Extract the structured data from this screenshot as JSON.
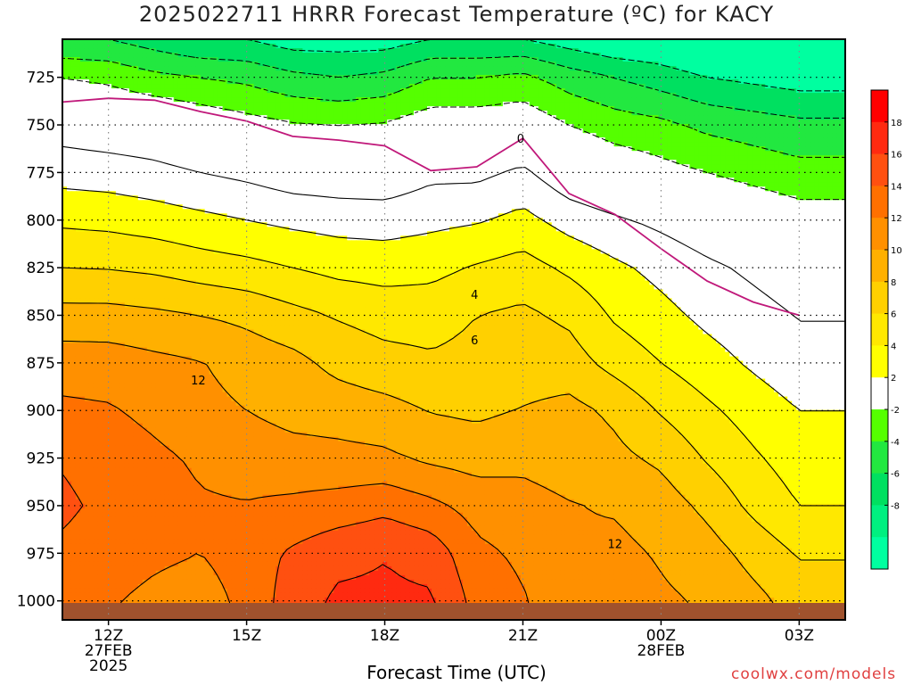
{
  "chart_data": {
    "type": "heatmap",
    "title": "2025022711 HRRR Forecast Temperature (ºC) for KACY",
    "xlabel": "Forecast Time (UTC)",
    "ylabel": "",
    "credit": "coolwx.com/models",
    "x_hours": [
      11,
      12,
      13,
      14,
      15,
      16,
      17,
      18,
      19,
      20,
      21,
      22,
      23,
      24,
      25,
      26,
      27
    ],
    "xlim": [
      11,
      28
    ],
    "ylim": [
      1010,
      705
    ],
    "y_ticks": [
      725,
      750,
      775,
      800,
      825,
      850,
      875,
      900,
      925,
      950,
      975,
      1000
    ],
    "x_ticks": [
      {
        "hour": 12,
        "lines": [
          "12Z",
          "27FEB",
          "2025"
        ]
      },
      {
        "hour": 15,
        "lines": [
          "15Z"
        ]
      },
      {
        "hour": 18,
        "lines": [
          "18Z"
        ]
      },
      {
        "hour": 21,
        "lines": [
          "21Z"
        ]
      },
      {
        "hour": 24,
        "lines": [
          "00Z",
          "28FEB"
        ]
      },
      {
        "hour": 27,
        "lines": [
          "03Z"
        ]
      }
    ],
    "grid": true,
    "levels_c": [
      -10,
      -8,
      -6,
      -4,
      -2,
      2,
      4,
      6,
      8,
      10,
      12,
      14,
      16,
      18,
      20
    ],
    "colorbar_labels": [
      18,
      16,
      14,
      12,
      10,
      8,
      6,
      4,
      2,
      -2,
      -4,
      -6,
      -8
    ],
    "colors": {
      "-10": "#00ffa0",
      "-8": "#00f080",
      "-6": "#00e060",
      "-4": "#22e840",
      "-2": "#55ff00",
      "2": "#ffffff",
      "4": "#ffff00",
      "6": "#ffe800",
      "8": "#ffd000",
      "10": "#ffb000",
      "12": "#ff9000",
      "14": "#ff7000",
      "16": "#ff5010",
      "18": "#ff2a10",
      "20": "#ff0000"
    },
    "ground_color": "#a0522d",
    "contour_labels": [
      {
        "hour": 20.95,
        "p": 757,
        "text": "0"
      },
      {
        "hour": 19.95,
        "p": 839,
        "text": "4"
      },
      {
        "hour": 19.95,
        "p": 863,
        "text": "6"
      },
      {
        "hour": 13.95,
        "p": 884,
        "text": "12"
      },
      {
        "hour": 23.0,
        "p": 970,
        "text": "12"
      }
    ],
    "zero_isotherm_p": [
      738,
      736,
      737,
      743,
      748,
      756,
      758,
      761,
      774,
      772,
      757,
      786,
      797,
      815,
      832,
      843,
      850
    ],
    "pressure_levels": [
      705,
      725,
      750,
      775,
      800,
      825,
      850,
      875,
      900,
      925,
      950,
      975,
      1000,
      1010
    ],
    "temperature_grid": [
      [
        -6,
        -6,
        -7,
        -8,
        -8,
        -9,
        -9,
        -9,
        -8,
        -8,
        -8,
        -9,
        -10,
        -10,
        -11,
        -11,
        -12
      ],
      [
        -2,
        -2.5,
        -3.5,
        -4,
        -4.5,
        -5.5,
        -6,
        -5.5,
        -4,
        -4,
        -3.5,
        -5,
        -6,
        -7,
        -8,
        -8.5,
        -9
      ],
      [
        1,
        0.6,
        0.3,
        -0.5,
        -1.2,
        -1.8,
        -2,
        -1.8,
        -0.8,
        -0.8,
        -0.5,
        -2,
        -3,
        -3.5,
        -4.5,
        -5,
        -5.5
      ],
      [
        3.2,
        3,
        2.6,
        2,
        1.5,
        0.8,
        0.6,
        0.5,
        1.5,
        1.5,
        2.4,
        0.5,
        -0.5,
        -1.3,
        -2,
        -2.7,
        -3.3
      ],
      [
        5.6,
        5.4,
        5,
        4.5,
        4,
        3.5,
        3.2,
        3.1,
        3.5,
        3.8,
        4.6,
        3.2,
        2.3,
        1.5,
        0.6,
        -0.2,
        -1
      ],
      [
        8,
        7.9,
        7.6,
        7,
        6.6,
        6,
        5.4,
        5.2,
        5.4,
        6.2,
        6.8,
        5.6,
        4.4,
        3.4,
        2.4,
        1.6,
        0.8
      ],
      [
        10.7,
        10.7,
        10.4,
        10,
        9.5,
        8.6,
        7.8,
        7.2,
        7.2,
        8,
        8.4,
        7.6,
        5.7,
        4.6,
        3.5,
        2.7,
        1.9
      ],
      [
        13.1,
        13,
        12.5,
        12.1,
        11.2,
        10.6,
        9.4,
        8.7,
        8.3,
        8.6,
        9,
        8.9,
        7.3,
        6,
        4.8,
        3.7,
        2.7
      ],
      [
        14.4,
        14.2,
        13.5,
        12.6,
        12,
        11.3,
        11.1,
        10.7,
        9.9,
        9.6,
        10.1,
        10.6,
        9.6,
        7.8,
        6.4,
        5.1,
        4
      ],
      [
        15.8,
        15.1,
        14.4,
        13.7,
        13.2,
        12.8,
        12.6,
        12.4,
        11.6,
        11.2,
        11.6,
        11.2,
        10.5,
        9.6,
        7.8,
        6.3,
        5
      ],
      [
        16.4,
        15.5,
        14.9,
        14.2,
        14.1,
        14.4,
        14.8,
        15.4,
        14.5,
        13.2,
        12.6,
        12.1,
        11.8,
        11,
        9.5,
        7.5,
        6
      ],
      [
        15.6,
        15,
        14.4,
        14,
        15,
        16.3,
        17.4,
        17.9,
        17.2,
        14.5,
        13.6,
        12.2,
        12.5,
        11.8,
        10.9,
        9.3,
        7.8
      ],
      [
        15,
        14.2,
        13.5,
        13,
        14.6,
        17,
        18.4,
        18.4,
        18.3,
        15.3,
        14.2,
        12.6,
        13,
        12.3,
        11.8,
        10.6,
        9.2
      ],
      [
        14.9,
        14.1,
        13.4,
        12.9,
        14.5,
        17,
        18.4,
        18.4,
        18.3,
        15.3,
        14.1,
        12.5,
        12.9,
        12.2,
        11.7,
        10.5,
        9.2
      ]
    ]
  }
}
